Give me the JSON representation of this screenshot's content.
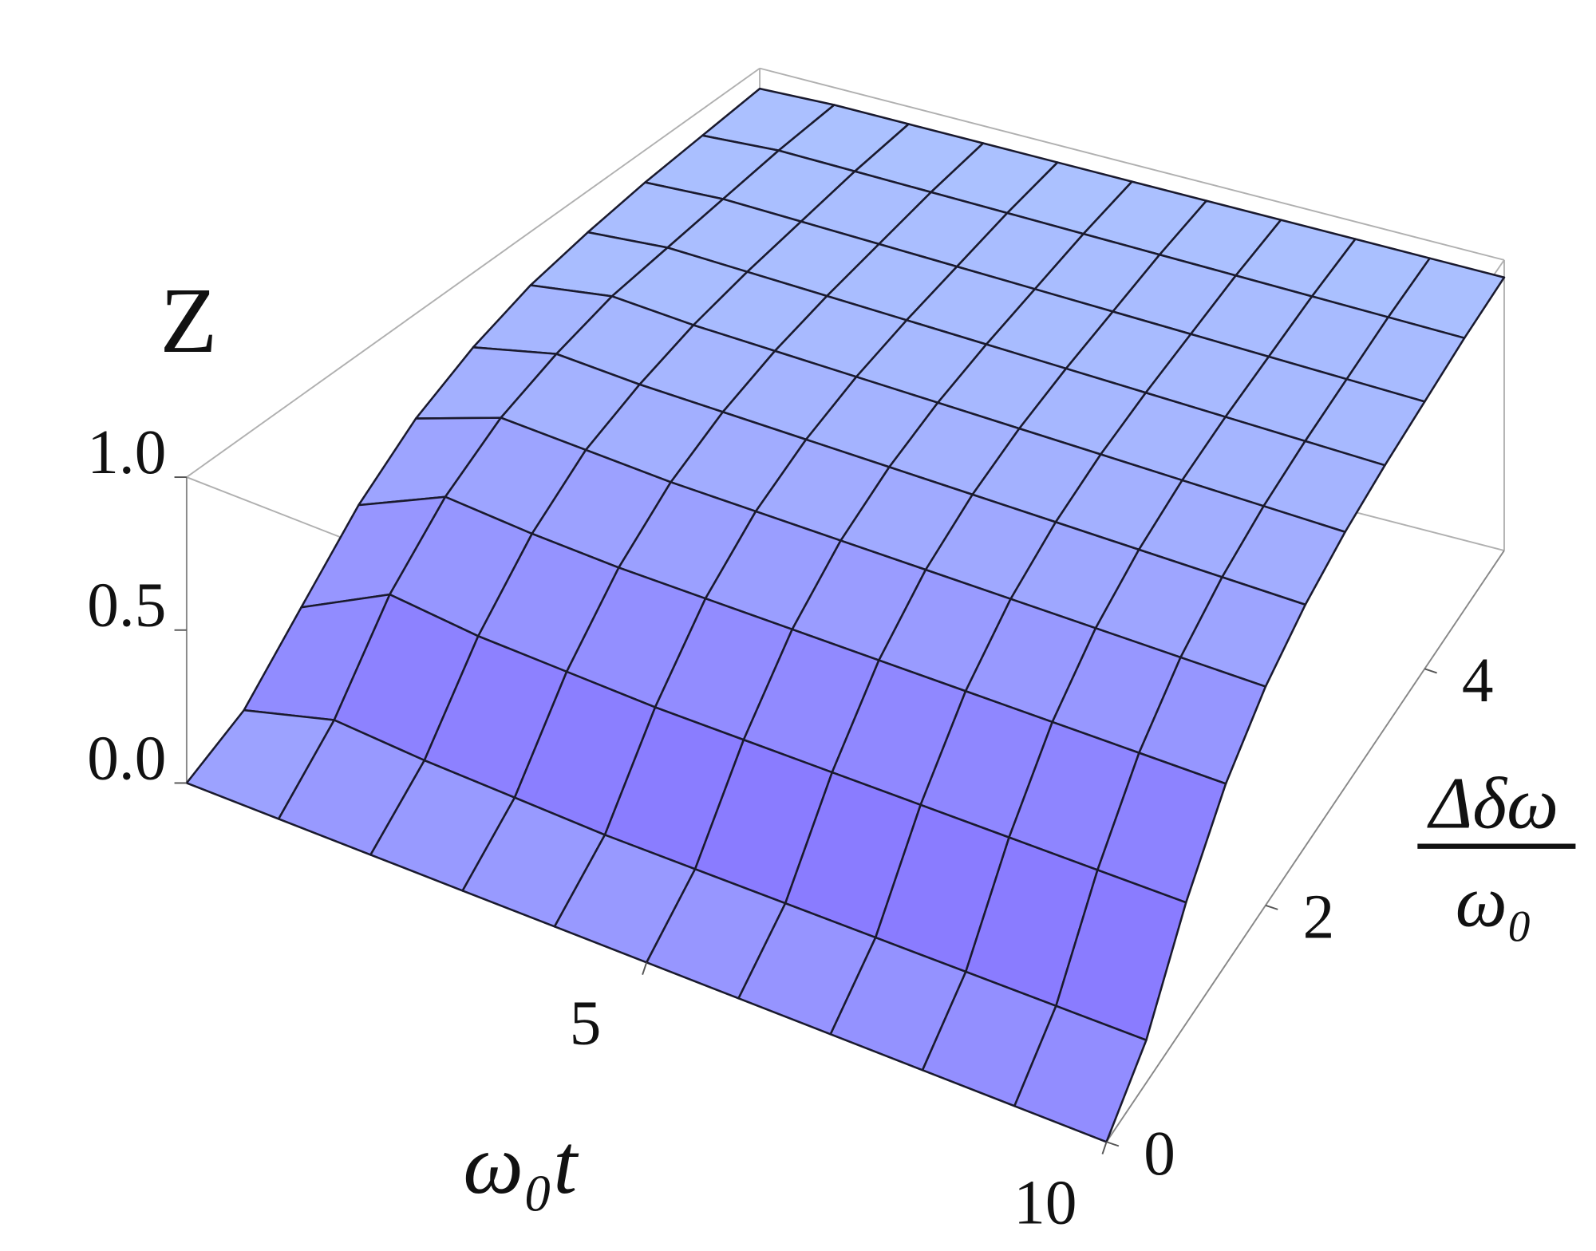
{
  "chart_data": {
    "type": "surface3d",
    "zlabel": "Z",
    "xlabel": "ω₀t",
    "ylabel": {
      "numerator": "Δδω",
      "denominator": "ω₀"
    },
    "x": [
      0,
      1,
      2,
      3,
      4,
      5,
      6,
      7,
      8,
      9,
      10
    ],
    "y": [
      0,
      0.5,
      1,
      1.5,
      2,
      2.5,
      3,
      3.5,
      4,
      4.5,
      5
    ],
    "z": [
      [
        0,
        0,
        0,
        0,
        0,
        0,
        0,
        0,
        0,
        0,
        0
      ],
      [
        0.1,
        0.18,
        0.16,
        0.15,
        0.14,
        0.14,
        0.14,
        0.14,
        0.14,
        0.14,
        0.14
      ],
      [
        0.3,
        0.45,
        0.42,
        0.41,
        0.4,
        0.4,
        0.4,
        0.4,
        0.4,
        0.4,
        0.4
      ],
      [
        0.5,
        0.63,
        0.61,
        0.6,
        0.6,
        0.6,
        0.6,
        0.6,
        0.6,
        0.6,
        0.6
      ],
      [
        0.65,
        0.75,
        0.74,
        0.73,
        0.73,
        0.73,
        0.73,
        0.73,
        0.73,
        0.73,
        0.73
      ],
      [
        0.75,
        0.82,
        0.81,
        0.81,
        0.81,
        0.81,
        0.81,
        0.81,
        0.81,
        0.81,
        0.81
      ],
      [
        0.82,
        0.87,
        0.86,
        0.86,
        0.86,
        0.86,
        0.86,
        0.86,
        0.86,
        0.86,
        0.86
      ],
      [
        0.86,
        0.89,
        0.89,
        0.89,
        0.89,
        0.89,
        0.89,
        0.89,
        0.89,
        0.89,
        0.89
      ],
      [
        0.89,
        0.91,
        0.91,
        0.91,
        0.91,
        0.91,
        0.91,
        0.91,
        0.91,
        0.91,
        0.91
      ],
      [
        0.91,
        0.93,
        0.93,
        0.93,
        0.93,
        0.93,
        0.93,
        0.93,
        0.93,
        0.93,
        0.93
      ],
      [
        0.93,
        0.94,
        0.94,
        0.94,
        0.94,
        0.94,
        0.94,
        0.94,
        0.94,
        0.94,
        0.94
      ]
    ],
    "xlim": [
      0,
      10
    ],
    "ylim": [
      0,
      5
    ],
    "zlim": [
      0,
      1
    ],
    "xticks": [
      5,
      10
    ],
    "yticks": [
      0,
      2,
      4
    ],
    "zticks": [
      {
        "value": 0,
        "label": "0.0"
      },
      0.5,
      {
        "value": 1,
        "label": "1.0"
      }
    ],
    "colors": [
      "#b8dcff",
      "#8a7cff"
    ],
    "mesh_color": "#1a1a2e",
    "box_color": "#b0b0b0"
  }
}
